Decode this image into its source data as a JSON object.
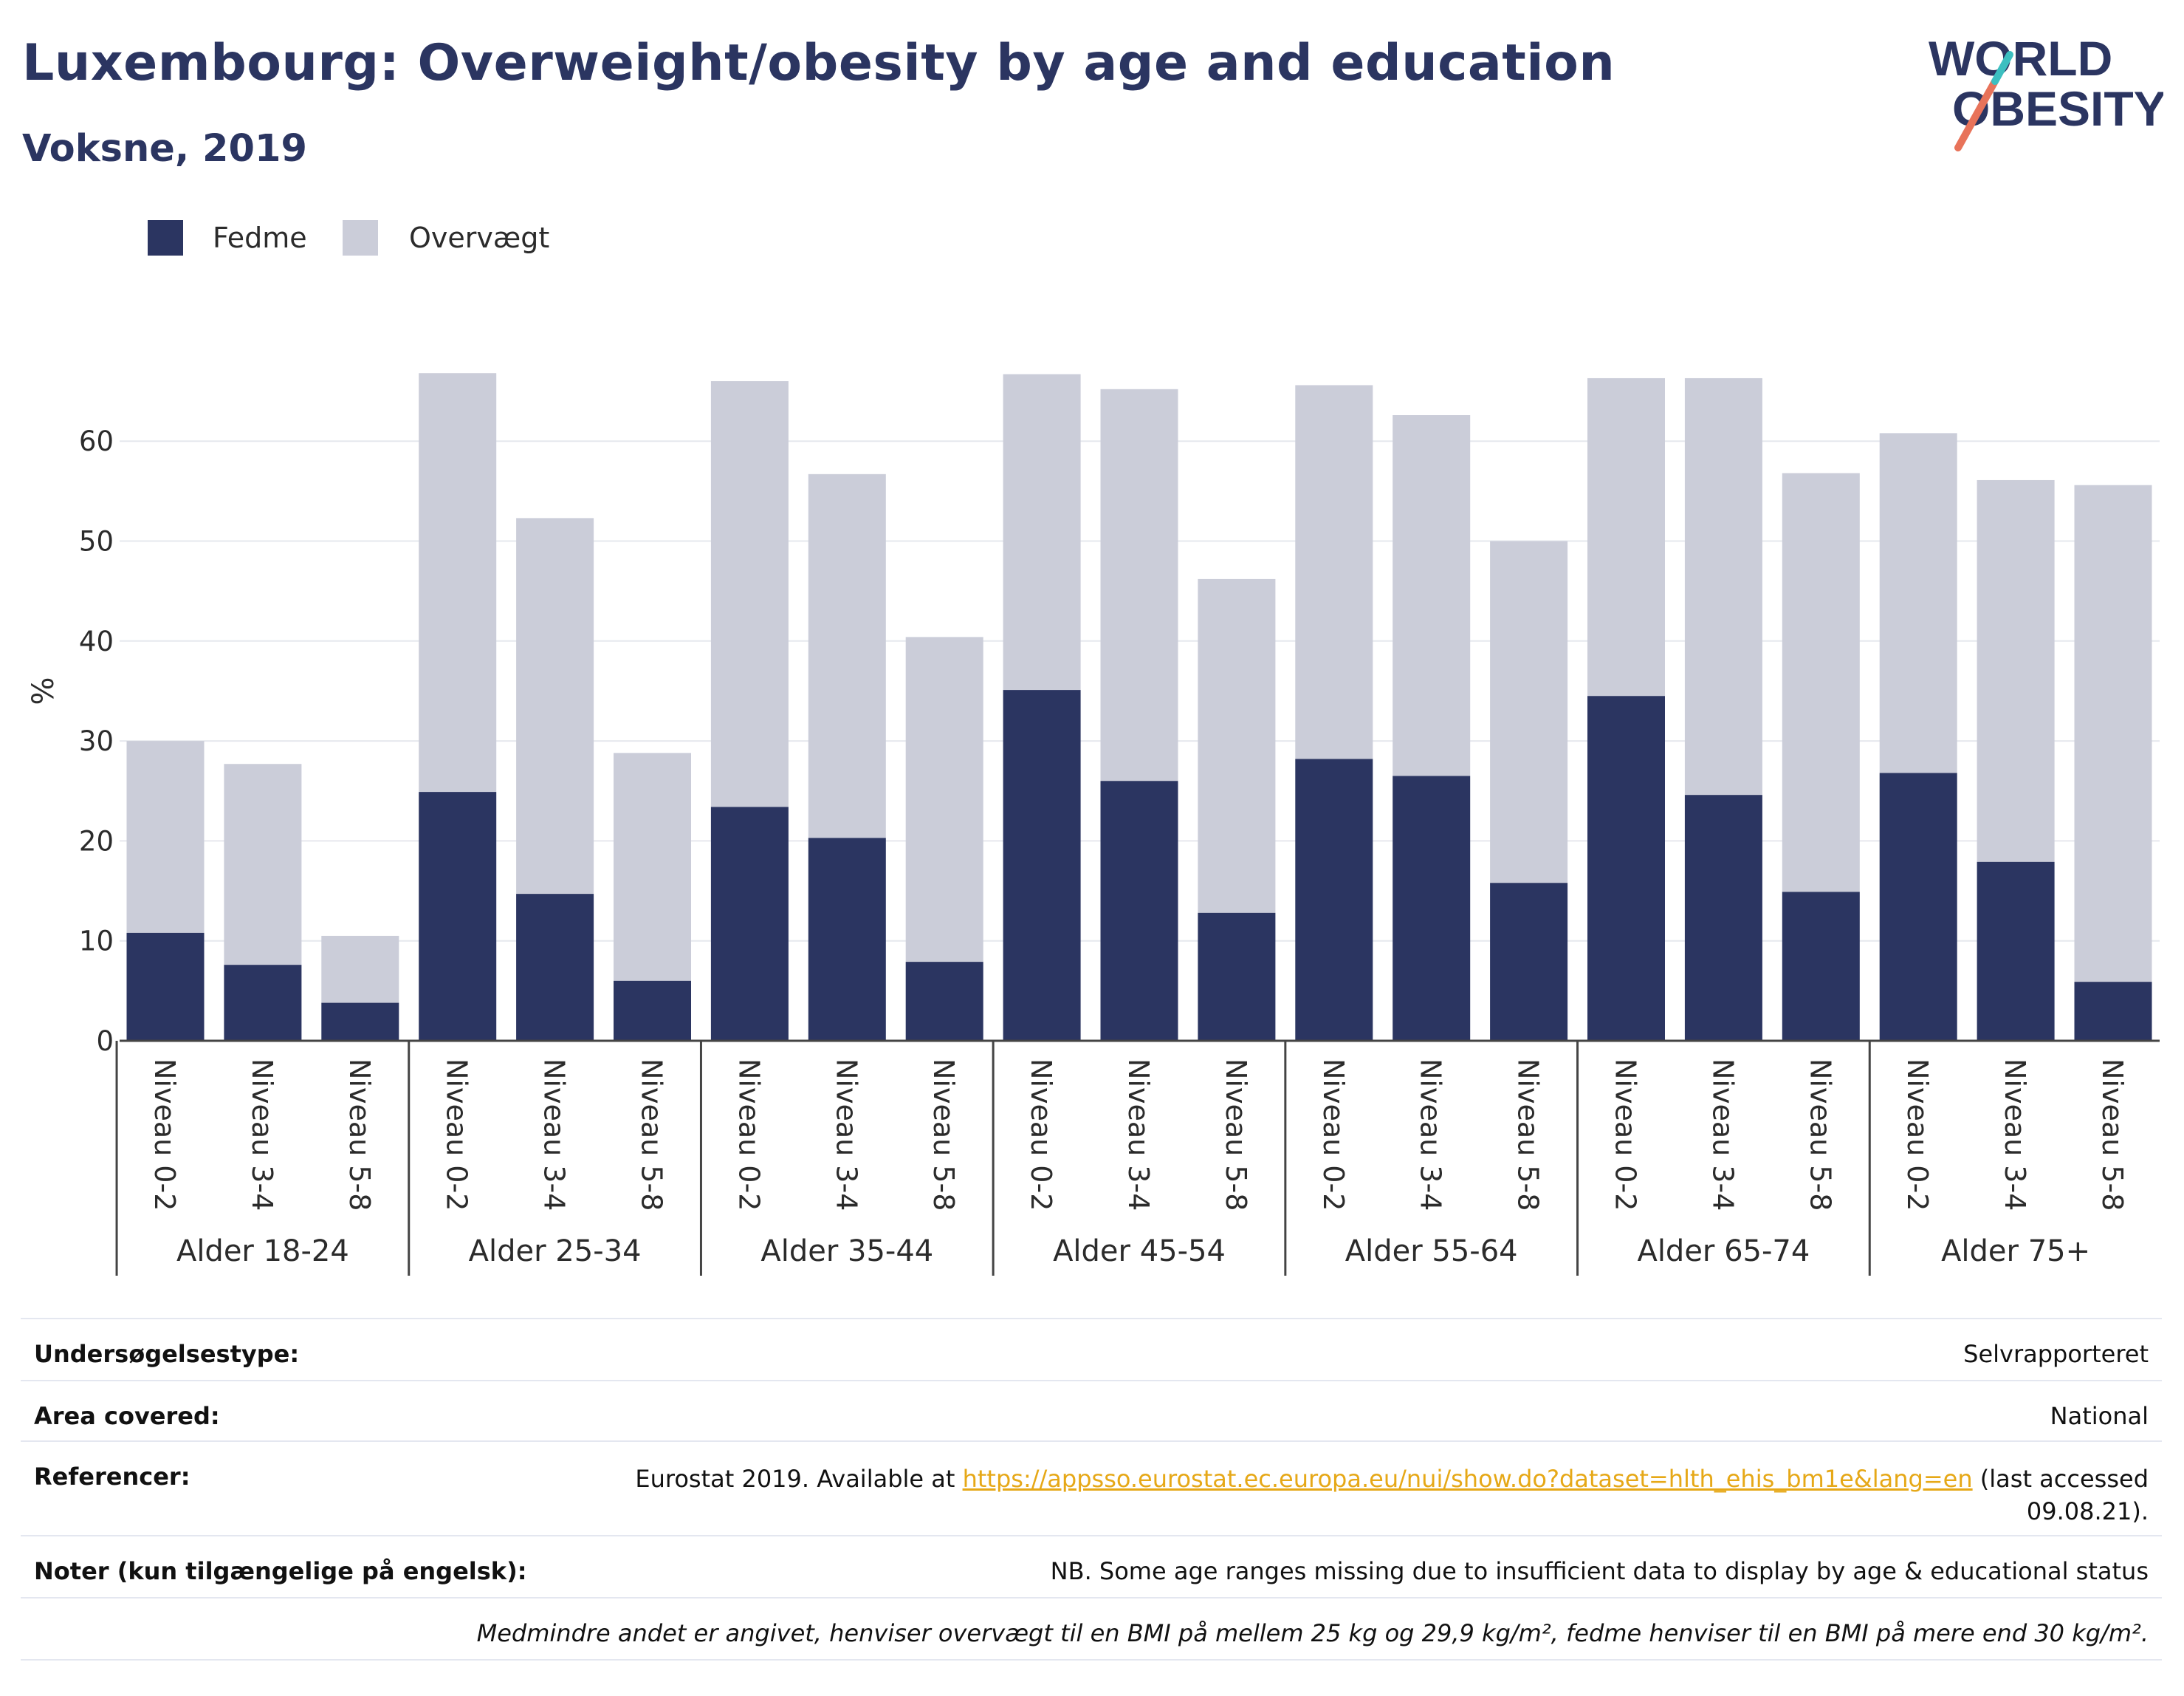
{
  "header": {
    "title": "Luxembourg: Overweight/obesity by age and education",
    "subtitle": "Voksne, 2019"
  },
  "logo": {
    "line1": "WORLD",
    "line2": "OBESITY"
  },
  "colors": {
    "obesity": "#2b3561",
    "overweight": "#cbcdd9",
    "accent_orange": "#e8735a",
    "accent_teal": "#3cbfc0",
    "link": "#e6a817"
  },
  "legend": [
    {
      "label": "Fedme",
      "color": "#2b3561"
    },
    {
      "label": "Overvægt",
      "color": "#cbcdd9"
    }
  ],
  "chart_data": {
    "type": "bar",
    "stacked": true,
    "ylabel": "%",
    "ylim": [
      0,
      70
    ],
    "yticks": [
      0,
      10,
      20,
      30,
      40,
      50,
      60
    ],
    "grid": true,
    "legend_position": "top-left",
    "groups": [
      "Alder 18-24",
      "Alder 25-34",
      "Alder 35-44",
      "Alder 45-54",
      "Alder 55-64",
      "Alder 65-74",
      "Alder 75+"
    ],
    "levels": [
      "Niveau 0-2",
      "Niveau 3-4",
      "Niveau 5-8"
    ],
    "series": [
      {
        "name": "Fedme",
        "values": [
          10.8,
          7.6,
          3.8,
          24.9,
          14.7,
          6.0,
          23.4,
          20.3,
          7.9,
          35.1,
          26.0,
          12.8,
          28.2,
          26.5,
          15.8,
          34.5,
          24.6,
          14.9,
          26.8,
          17.9,
          5.9
        ]
      },
      {
        "name": "Overvægt",
        "values": [
          19.2,
          20.1,
          6.7,
          41.9,
          37.6,
          22.8,
          42.6,
          36.4,
          32.5,
          31.6,
          39.2,
          33.4,
          37.4,
          36.1,
          34.2,
          31.8,
          41.7,
          41.9,
          34.0,
          38.2,
          49.7
        ]
      }
    ]
  },
  "info": {
    "survey_type_label": "Undersøgelsestype:",
    "survey_type_value": "Selvrapporteret",
    "area_label": "Area covered:",
    "area_value": "National",
    "refs_label": "Referencer:",
    "refs_prefix": "Eurostat 2019. Available at ",
    "refs_link": "https://appsso.eurostat.ec.europa.eu/nui/show.do?dataset=hlth_ehis_bm1e&lang=en",
    "refs_suffix": " (last accessed",
    "refs_date": "09.08.21).",
    "notes_label": "Noter (kun tilgængelige på engelsk):",
    "notes_value": "NB. Some age ranges missing due to insufficient data to display by age & educational status",
    "bmi_note": "Medmindre andet er angivet, henviser overvægt til en BMI på mellem 25 kg og 29,9 kg/m², fedme henviser til en BMI på mere end 30 kg/m²."
  }
}
